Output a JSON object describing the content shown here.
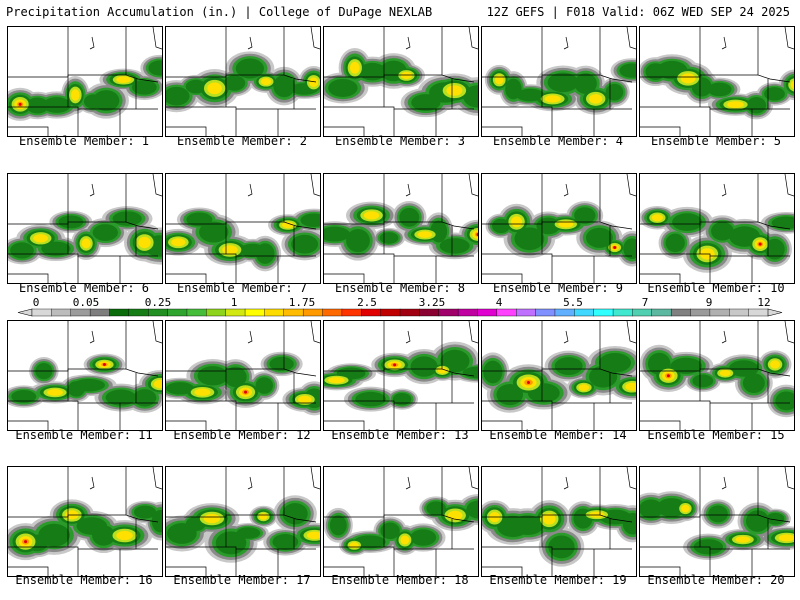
{
  "header": {
    "left_title": "Precipitation Accumulation (in.) | College of DuPage NEXLAB",
    "right_title": "12Z GEFS | F018 Valid: 06Z WED SEP 24 2025"
  },
  "colorbar": {
    "labels": [
      "0",
      "0.05",
      "0.25",
      "1",
      "1.75",
      "2.5",
      "3.25",
      "4",
      "5.5",
      "7",
      "9",
      "12"
    ],
    "colors": [
      "#d8d8d8",
      "#bcbcbc",
      "#9c9c9c",
      "#7e7e7e",
      "#0a6b0a",
      "#167d16",
      "#228f22",
      "#2fa52f",
      "#45bd3a",
      "#8fd41c",
      "#d2e812",
      "#ffff00",
      "#ffdc00",
      "#ffbc00",
      "#ff9900",
      "#ff6a00",
      "#ff3300",
      "#e00000",
      "#c00000",
      "#a00010",
      "#8a0030",
      "#a0006a",
      "#c000a0",
      "#e000d0",
      "#ff40ff",
      "#c070ff",
      "#8090ff",
      "#60b0ff",
      "#40d8ff",
      "#30ffff",
      "#40e8d0",
      "#50d0b0",
      "#5cb8a0",
      "#808080",
      "#9a9a9a",
      "#b0b0b0",
      "#c8c8c8",
      "#d8d8d8"
    ]
  },
  "member_prefix": "Ensemble Member: ",
  "members": [
    {
      "label": "Ensemble Member: 1"
    },
    {
      "label": "Ensemble Member: 2"
    },
    {
      "label": "Ensemble Member: 3"
    },
    {
      "label": "Ensemble Member: 4"
    },
    {
      "label": "Ensemble Member: 5"
    },
    {
      "label": "Ensemble Member: 6"
    },
    {
      "label": "Ensemble Member: 7"
    },
    {
      "label": "Ensemble Member: 8"
    },
    {
      "label": "Ensemble Member: 9"
    },
    {
      "label": "Ensemble Member: 10"
    },
    {
      "label": "Ensemble Member: 11"
    },
    {
      "label": "Ensemble Member: 12"
    },
    {
      "label": "Ensemble Member: 13"
    },
    {
      "label": "Ensemble Member: 14"
    },
    {
      "label": "Ensemble Member: 15"
    },
    {
      "label": "Ensemble Member: 16"
    },
    {
      "label": "Ensemble Member: 17"
    },
    {
      "label": "Ensemble Member: 18"
    },
    {
      "label": "Ensemble Member: 19"
    },
    {
      "label": "Ensemble Member: 20"
    }
  ]
}
